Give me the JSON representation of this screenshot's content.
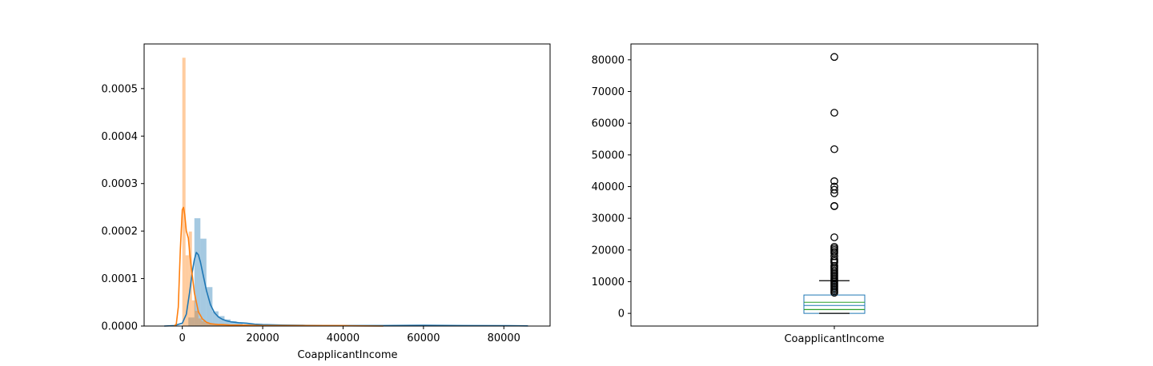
{
  "chart_data": [
    {
      "type": "area",
      "xlabel": "CoapplicantIncome",
      "ylabel": "",
      "title": "",
      "xlim": [
        -9500,
        91500
      ],
      "ylim": [
        0,
        0.000594
      ],
      "xticks": [
        0,
        20000,
        40000,
        60000,
        80000
      ],
      "yticks": [
        0.0,
        0.0001,
        0.0002,
        0.0003,
        0.0004,
        0.0005
      ],
      "xtick_labels": [
        "0",
        "20000",
        "40000",
        "60000",
        "80000"
      ],
      "ytick_labels": [
        "0.0000",
        "0.0001",
        "0.0002",
        "0.0003",
        "0.0004",
        "0.0005"
      ],
      "grid": false,
      "legend": "none",
      "histograms": [
        {
          "color": "#1f77b4",
          "alpha": 0.4,
          "bin_width": 1500,
          "bins_start": [
            1500,
            3000,
            4500,
            6000,
            7500,
            9000,
            10500,
            12000,
            13500,
            15000,
            16500,
            18000,
            19500,
            21000,
            22500,
            24000,
            25500,
            27000,
            28500,
            30000,
            31500,
            33000,
            34500,
            36000,
            37500,
            39000,
            40500,
            42000,
            43500,
            45000,
            46500,
            48000,
            49500,
            51000,
            52500,
            54000,
            55500,
            57000,
            58500,
            60000,
            61500,
            63000,
            64500,
            66000,
            67500,
            69000,
            70500,
            72000,
            73500,
            75000,
            76500,
            78000,
            79500
          ],
          "density": [
            1.8e-05,
            0.000227,
            0.000184,
            8.2e-05,
            3.1e-05,
            2.1e-05,
            1.4e-05,
            1e-05,
            7e-06,
            4e-06,
            4e-06,
            2e-06,
            2e-06,
            2e-06,
            1.5e-06,
            1.5e-06,
            1e-06,
            1e-06,
            1e-06,
            1e-06,
            1e-06,
            1e-06,
            8e-07,
            8e-07,
            8e-07,
            8e-07,
            8e-07,
            8e-07,
            5e-07,
            5e-07,
            5e-07,
            5e-07,
            5e-07,
            5e-07,
            5e-07,
            5e-07,
            5e-07,
            5e-07,
            5e-07,
            5e-07,
            5e-07,
            5e-07,
            5e-07,
            5e-07,
            5e-07,
            5e-07,
            5e-07,
            5e-07,
            5e-07,
            5e-07,
            5e-07,
            5e-07,
            5e-07
          ]
        },
        {
          "color": "#ff7f0e",
          "alpha": 0.4,
          "bin_width": 800,
          "bins_start": [
            0,
            800,
            1600,
            2400,
            3200,
            4000,
            4800,
            5600,
            6400,
            7200,
            8000,
            8800,
            9600,
            10400,
            11200,
            12000,
            12800,
            13600,
            14400,
            15200,
            16000,
            16800,
            17600,
            18400,
            19200,
            20000
          ],
          "density": [
            0.000565,
            0.000149,
            0.000199,
            5.4e-05,
            3.2e-05,
            1.6e-05,
            1e-05,
            7e-06,
            5e-06,
            4e-06,
            3e-06,
            3e-06,
            2e-06,
            2e-06,
            2e-06,
            1e-06,
            1e-06,
            1e-06,
            1e-06,
            1e-06,
            1e-06,
            1e-06,
            1e-06,
            1e-06,
            1e-06,
            1e-06
          ]
        }
      ],
      "kde_series": [
        {
          "color": "#1f77b4",
          "x": [
            -4500,
            -2000,
            0,
            1000,
            1800,
            2500,
            3000,
            3500,
            4000,
            4500,
            5000,
            6000,
            7000,
            8000,
            9000,
            10000,
            11000,
            12000,
            14000,
            16000,
            18000,
            20000,
            25000,
            30000,
            40000,
            50000,
            60000,
            70000,
            80000,
            86000
          ],
          "y": [
            0,
            1e-06,
            6e-06,
            2.5e-05,
            7e-05,
            0.000115,
            0.00014,
            0.000155,
            0.00015,
            0.000135,
            0.000115,
            7.5e-05,
            4.5e-05,
            2.8e-05,
            1.9e-05,
            1.4e-05,
            1.1e-05,
            9e-06,
            7e-06,
            6e-06,
            4e-06,
            3e-06,
            2e-06,
            1.5e-06,
            1e-06,
            1e-06,
            1.5e-06,
            1e-06,
            8e-07,
            3e-07
          ]
        },
        {
          "color": "#ff7f0e",
          "x": [
            -2000,
            -1500,
            -1000,
            -500,
            0,
            300,
            600,
            1000,
            1500,
            2000,
            3000,
            4000,
            5000,
            6000,
            7000,
            8000,
            9000,
            10000,
            12000,
            15000,
            20000,
            25000,
            30000,
            35000,
            40000,
            42000,
            45000,
            50000
          ],
          "y": [
            0,
            4e-06,
            4e-05,
            0.00016,
            0.000245,
            0.00025,
            0.000235,
            0.0002,
            0.000185,
            0.00014,
            7e-05,
            3e-05,
            1.5e-05,
            8e-06,
            5e-06,
            4e-06,
            3e-06,
            3e-06,
            2e-06,
            2e-06,
            1e-06,
            1e-06,
            1e-06,
            1e-06,
            1e-06,
            5e-07,
            3e-07,
            0
          ]
        }
      ]
    },
    {
      "type": "box",
      "category": "CoapplicantIncome",
      "ylim": [
        -4000,
        85000
      ],
      "yticks": [
        0,
        10000,
        20000,
        30000,
        40000,
        50000,
        60000,
        70000,
        80000
      ],
      "ytick_labels": [
        "0",
        "10000",
        "20000",
        "30000",
        "40000",
        "50000",
        "60000",
        "70000",
        "80000"
      ],
      "grid": false,
      "box_color": "#1f77b4",
      "median_color": "#2ca02c",
      "whisker_color": "#000000",
      "stats": {
        "whisker_low": 0,
        "q1": 0,
        "median": 1200,
        "mean_line": 2500,
        "inner_line": 3500,
        "q3": 5800,
        "whisker_high": 10300
      },
      "outliers": [
        80900,
        63300,
        51800,
        41700,
        40000,
        39000,
        37900,
        33900,
        33800,
        24000,
        21000,
        20500,
        20000,
        19500,
        19000,
        18000,
        17000,
        16500,
        16000,
        15000,
        14500,
        14000,
        13500,
        13000,
        12500,
        12000,
        11500,
        11000,
        10500,
        10000,
        9500,
        9000,
        8500,
        8000,
        7500,
        7000,
        6500
      ]
    }
  ]
}
